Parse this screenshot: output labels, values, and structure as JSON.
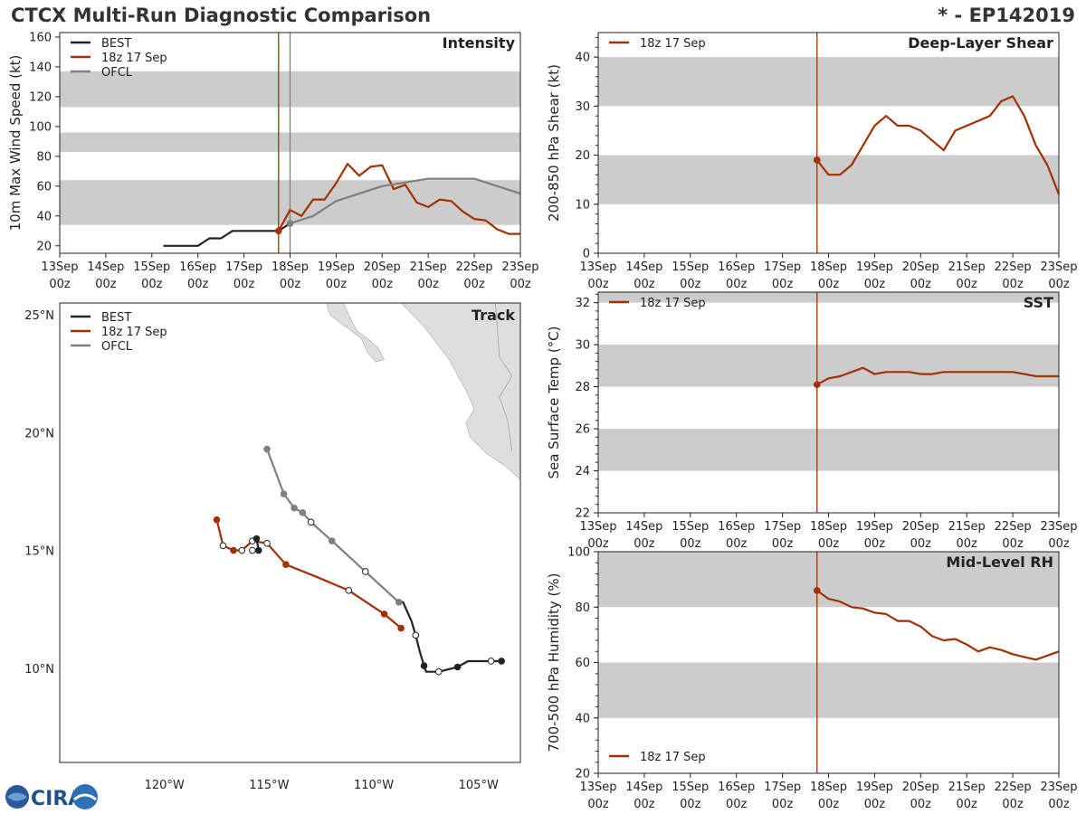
{
  "header": {
    "title_left": "CTCX Multi-Run Diagnostic Comparison",
    "title_right": "* - EP142019"
  },
  "logo": {
    "text": "CIRA"
  },
  "colors": {
    "best": "#222222",
    "run": "#a33000",
    "ofcl": "#7f7f7f",
    "band": "#cccccc",
    "land": "#dedede"
  },
  "time_ticks": [
    {
      "day": "13Sep",
      "hour": "00z"
    },
    {
      "day": "14Sep",
      "hour": "00z"
    },
    {
      "day": "15Sep",
      "hour": "00z"
    },
    {
      "day": "16Sep",
      "hour": "00z"
    },
    {
      "day": "17Sep",
      "hour": "00z"
    },
    {
      "day": "18Sep",
      "hour": "00z"
    },
    {
      "day": "19Sep",
      "hour": "00z"
    },
    {
      "day": "20Sep",
      "hour": "00z"
    },
    {
      "day": "21Sep",
      "hour": "00z"
    },
    {
      "day": "22Sep",
      "hour": "00z"
    },
    {
      "day": "23Sep",
      "hour": "00z"
    }
  ],
  "chart_data": [
    {
      "id": "intensity",
      "type": "line",
      "title": "Intensity",
      "ylabel": "10m Max Wind Speed (kt)",
      "xlabel": "",
      "x_unit": "days since 13Sep 00z",
      "xlim": [
        0,
        10
      ],
      "ylim": [
        15,
        163
      ],
      "yticks": [
        20,
        40,
        60,
        80,
        100,
        120,
        140,
        160
      ],
      "bands": [
        [
          34,
          64
        ],
        [
          83,
          96
        ],
        [
          113,
          137
        ]
      ],
      "init_lines": [
        {
          "x": 4.75,
          "color": "run"
        },
        {
          "x": 5.0,
          "color": "ofcl"
        }
      ],
      "legend": [
        "BEST",
        "18z 17 Sep",
        "OFCL"
      ],
      "series": [
        {
          "name": "BEST",
          "color": "best",
          "x": [
            2.25,
            2.5,
            2.75,
            3.0,
            3.25,
            3.5,
            3.75,
            4.0,
            4.25,
            4.5,
            4.75,
            5.0
          ],
          "y": [
            20,
            20,
            20,
            20,
            25,
            25,
            30,
            30,
            30,
            30,
            30,
            35
          ]
        },
        {
          "name": "18z 17 Sep",
          "color": "run",
          "marker_first": true,
          "x": [
            4.75,
            5.0,
            5.25,
            5.5,
            5.75,
            6.0,
            6.25,
            6.5,
            6.75,
            7.0,
            7.25,
            7.5,
            7.75,
            8.0,
            8.25,
            8.5,
            8.75,
            9.0,
            9.25,
            9.5,
            9.75,
            10.0
          ],
          "y": [
            30,
            44,
            40,
            51,
            51,
            62,
            75,
            67,
            73,
            74,
            58,
            61,
            49,
            46,
            51,
            50,
            43,
            38,
            37,
            31,
            28,
            28
          ]
        },
        {
          "name": "OFCL",
          "color": "ofcl",
          "marker_first": true,
          "x": [
            5.0,
            5.5,
            6.0,
            7.0,
            8.0,
            9.0,
            10.0
          ],
          "y": [
            35,
            40,
            50,
            60,
            65,
            65,
            55
          ]
        }
      ]
    },
    {
      "id": "shear",
      "type": "line",
      "title": "Deep-Layer Shear",
      "ylabel": "200-850 hPa Shear (kt)",
      "xlabel": "",
      "x_unit": "days since 13Sep 00z",
      "xlim": [
        0,
        10
      ],
      "ylim": [
        0,
        45
      ],
      "yticks": [
        0,
        10,
        20,
        30,
        40
      ],
      "bands": [
        [
          10,
          20
        ],
        [
          30,
          40
        ]
      ],
      "init_lines": [
        {
          "x": 4.75,
          "color": "run"
        }
      ],
      "legend": [
        "18z 17 Sep"
      ],
      "series": [
        {
          "name": "18z 17 Sep",
          "color": "run",
          "marker_first": true,
          "x": [
            4.75,
            5.0,
            5.25,
            5.5,
            5.75,
            6.0,
            6.25,
            6.5,
            6.75,
            7.0,
            7.25,
            7.5,
            7.75,
            8.0,
            8.25,
            8.5,
            8.75,
            9.0,
            9.25,
            9.5,
            9.75,
            10.0
          ],
          "y": [
            19,
            16,
            16,
            18,
            22,
            26,
            28,
            26,
            26,
            25,
            23,
            21,
            25,
            26,
            27,
            28,
            31,
            32,
            28,
            22,
            18,
            12
          ]
        }
      ]
    },
    {
      "id": "sst",
      "type": "line",
      "title": "SST",
      "ylabel": "Sea Surface Temp (°C)",
      "xlabel": "",
      "x_unit": "days since 13Sep 00z",
      "xlim": [
        0,
        10
      ],
      "ylim": [
        22,
        32.5
      ],
      "yticks": [
        22,
        24,
        26,
        28,
        30,
        32
      ],
      "bands": [
        [
          24,
          26
        ],
        [
          28,
          30
        ],
        [
          32,
          32.5
        ]
      ],
      "init_lines": [
        {
          "x": 4.75,
          "color": "run"
        }
      ],
      "legend": [
        "18z 17 Sep"
      ],
      "series": [
        {
          "name": "18z 17 Sep",
          "color": "run",
          "marker_first": true,
          "x": [
            4.75,
            5.0,
            5.25,
            5.5,
            5.75,
            6.0,
            6.25,
            6.5,
            6.75,
            7.0,
            7.25,
            7.5,
            7.75,
            8.0,
            8.25,
            8.5,
            8.75,
            9.0,
            9.25,
            9.5,
            9.75,
            10.0
          ],
          "y": [
            28.1,
            28.4,
            28.5,
            28.7,
            28.9,
            28.6,
            28.7,
            28.7,
            28.7,
            28.6,
            28.6,
            28.7,
            28.7,
            28.7,
            28.7,
            28.7,
            28.7,
            28.7,
            28.6,
            28.5,
            28.5,
            28.5
          ]
        }
      ]
    },
    {
      "id": "rh",
      "type": "line",
      "title": "Mid-Level RH",
      "ylabel": "700-500 hPa Humidity (%)",
      "xlabel": "",
      "x_unit": "days since 13Sep 00z",
      "xlim": [
        0,
        10
      ],
      "ylim": [
        20,
        100
      ],
      "yticks": [
        20,
        40,
        60,
        80,
        100
      ],
      "bands": [
        [
          40,
          60
        ],
        [
          80,
          100
        ]
      ],
      "init_lines": [
        {
          "x": 4.75,
          "color": "run"
        }
      ],
      "legend": [
        "18z 17 Sep"
      ],
      "series": [
        {
          "name": "18z 17 Sep",
          "color": "run",
          "marker_first": true,
          "x": [
            4.75,
            5.0,
            5.25,
            5.5,
            5.75,
            6.0,
            6.25,
            6.5,
            6.75,
            7.0,
            7.25,
            7.5,
            7.75,
            8.0,
            8.25,
            8.5,
            8.75,
            9.0,
            9.25,
            9.5,
            9.75,
            10.0
          ],
          "y": [
            86,
            83,
            82,
            80,
            79.5,
            78,
            77.5,
            75,
            75,
            73,
            69.5,
            68,
            68.5,
            66.5,
            64,
            65.5,
            64.5,
            63,
            62,
            61,
            62.5,
            64
          ]
        }
      ]
    },
    {
      "id": "track",
      "type": "scatter",
      "title": "Track",
      "xlabel": "",
      "ylabel": "",
      "xlim": [
        -125,
        -103
      ],
      "ylim": [
        6,
        25.5
      ],
      "xticks": [
        {
          "v": -120,
          "label": "120°W"
        },
        {
          "v": -115,
          "label": "115°W"
        },
        {
          "v": -110,
          "label": "110°W"
        },
        {
          "v": -105,
          "label": "105°W"
        }
      ],
      "yticks": [
        {
          "v": 10,
          "label": "10°N"
        },
        {
          "v": 15,
          "label": "15°N"
        },
        {
          "v": 20,
          "label": "20°N"
        },
        {
          "v": 25,
          "label": "25°N"
        }
      ],
      "legend": [
        "BEST",
        "18z 17 Sep",
        "OFCL"
      ],
      "series": [
        {
          "name": "BEST",
          "color": "best",
          "lon": [
            -103.9,
            -104.4,
            -105.0,
            -105.5,
            -106.0,
            -106.9,
            -107.4,
            -107.5,
            -107.6,
            -107.8,
            -108.0,
            -108.2,
            -108.6,
            -108.8
          ],
          "lat": [
            10.3,
            10.3,
            10.3,
            10.3,
            10.05,
            9.85,
            9.85,
            9.85,
            10.1,
            10.7,
            11.4,
            12.0,
            12.8,
            12.8
          ],
          "marker_fill": [
            1,
            0,
            0,
            0,
            1,
            0,
            0,
            0,
            1,
            0,
            0,
            0,
            1,
            0
          ],
          "marker_show": [
            1,
            1,
            0,
            0,
            1,
            1,
            0,
            0,
            1,
            0,
            1,
            0,
            0,
            0
          ]
        },
        {
          "name": "18z 17 Sep",
          "color": "run",
          "lon": [
            -108.7,
            -109.5,
            -111.2,
            -112.8,
            -114.2,
            -115.1,
            -115.8,
            -116.3,
            -116.7,
            -117.2,
            -117.5
          ],
          "lat": [
            11.7,
            12.3,
            13.3,
            13.9,
            14.4,
            15.3,
            15.4,
            15.0,
            15.0,
            15.2,
            16.3
          ],
          "marker_fill": [
            1,
            1,
            0,
            1,
            1,
            0,
            0,
            0,
            1,
            0,
            1
          ],
          "marker_show": [
            1,
            1,
            1,
            0,
            1,
            1,
            1,
            1,
            1,
            1,
            1
          ]
        },
        {
          "name": "OFCL",
          "color": "ofcl",
          "lon": [
            -108.8,
            -110.4,
            -112.0,
            -113.0,
            -113.4,
            -113.8,
            -114.3,
            -115.1
          ],
          "lat": [
            12.8,
            14.1,
            15.4,
            16.2,
            16.6,
            16.8,
            17.4,
            19.3
          ],
          "marker_fill": [
            1,
            0,
            1,
            0,
            1,
            1,
            1,
            1
          ],
          "marker_show": [
            1,
            1,
            1,
            1,
            1,
            1,
            1,
            1
          ]
        },
        {
          "name": "BEST-tail",
          "color": "best",
          "lon": [
            -115.6,
            -115.5,
            -115.8
          ],
          "lat": [
            15.5,
            15.0,
            15.0
          ],
          "marker_fill": [
            1,
            1,
            0
          ],
          "marker_show": [
            1,
            1,
            1
          ]
        }
      ]
    }
  ]
}
